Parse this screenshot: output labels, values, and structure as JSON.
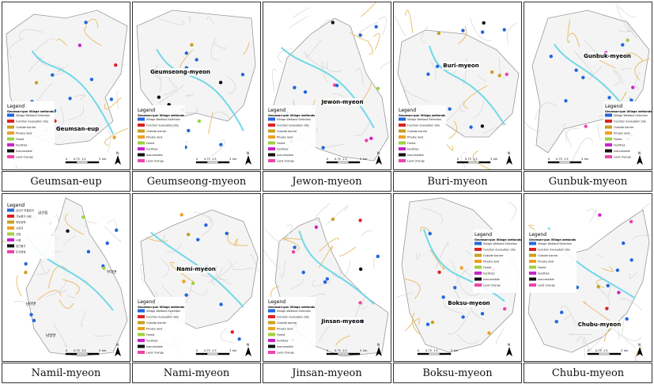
{
  "panels": [
    {
      "caption": "Geumsan-eup",
      "label": "Geumsan-eup",
      "legend_kind": "en",
      "legend_pos": "left-mid"
    },
    {
      "caption": "Geumseong-myeon",
      "label": "Geumseong-myeon",
      "legend_kind": "en",
      "legend_pos": "left-bottom"
    },
    {
      "caption": "Jewon-myeon",
      "label": "Jewon-myeon",
      "legend_kind": "en",
      "legend_pos": "left-bottom"
    },
    {
      "caption": "Buri-myeon",
      "label": "Buri-myeon",
      "legend_kind": "en",
      "legend_pos": "left-bottom"
    },
    {
      "caption": "Gunbuk-myeon",
      "label": "Gunbuk-myeon",
      "legend_kind": "en",
      "legend_pos": "right-mid"
    },
    {
      "caption": "Namil-myeon",
      "label": "",
      "legend_kind": "ko",
      "legend_pos": "left-top"
    },
    {
      "caption": "Nami-myeon",
      "label": "Nami-myeon",
      "legend_kind": "en",
      "legend_pos": "left-bottom"
    },
    {
      "caption": "Jinsan-myeon",
      "label": "Jinsan-myeon",
      "legend_kind": "en",
      "legend_pos": "left-bottom"
    },
    {
      "caption": "Boksu-myeon",
      "label": "Boksu-myeon",
      "legend_kind": "en",
      "legend_pos": "right-top"
    },
    {
      "caption": "Chubu-myeon",
      "label": "Chubu-myeon",
      "legend_kind": "en",
      "legend_pos": "left-top"
    }
  ],
  "legend": {
    "title": "Legend",
    "group": "Geumsan-gun Village wetlands",
    "items": [
      {
        "label": "Village Wetland Selection",
        "color": "#2266dd"
      },
      {
        "label": "Function Evaluation Site",
        "color": "#dd2222"
      },
      {
        "label": "Outside barrier",
        "color": "#c8a020"
      },
      {
        "label": "Private land",
        "color": "#f0a020"
      },
      {
        "label": "Forest",
        "color": "#a0d040"
      },
      {
        "label": "Facilities",
        "color": "#cc22cc"
      },
      {
        "label": "Inaccessible",
        "color": "#111111"
      },
      {
        "label": "Land change",
        "color": "#ee44aa"
      }
    ]
  },
  "legend_ko": {
    "title": "Legend",
    "items": [
      {
        "label": "금산군 마을습지",
        "color": "#2266dd"
      },
      {
        "label": "기능평가 대상",
        "color": "#dd2222"
      },
      {
        "label": "외부장벽",
        "color": "#c8a020"
      },
      {
        "label": "사유지",
        "color": "#f0a020"
      },
      {
        "label": "산림",
        "color": "#a0d040"
      },
      {
        "label": "시설",
        "color": "#cc22cc"
      },
      {
        "label": "접근불가",
        "color": "#111111"
      },
      {
        "label": "토지변화",
        "color": "#ee44aa"
      }
    ]
  },
  "scale_ticks": [
    "0",
    "0.75",
    "1.5",
    "3"
  ],
  "scale_unit": "km",
  "north": "N",
  "namil_place_labels": [
    "금산읍",
    "부리면",
    "남이면",
    "남일면"
  ]
}
